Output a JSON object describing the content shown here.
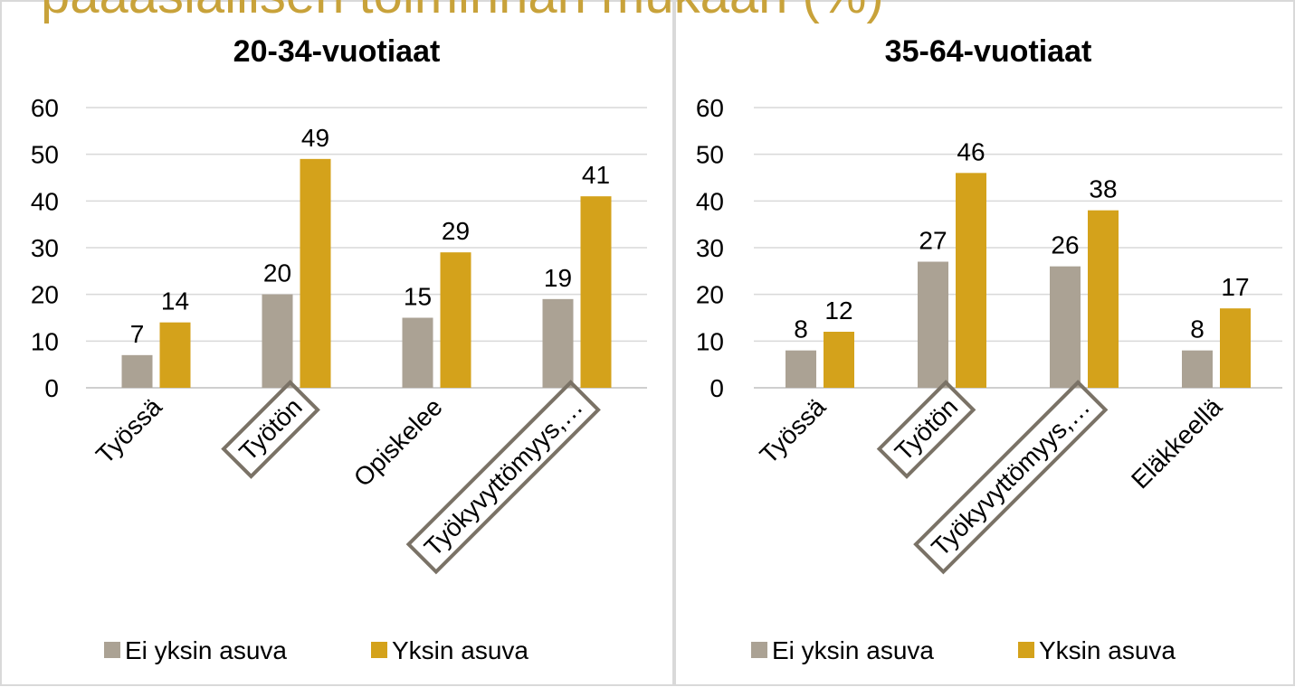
{
  "heading": "pääasiallisen toiminnan mukaan (%)",
  "chart_data": [
    {
      "type": "bar",
      "title": "20-34-vuotiaat",
      "categories": [
        "Työssä",
        "Työtön",
        "Opiskelee",
        "Työkyvyttömyys,…"
      ],
      "series": [
        {
          "name": "Ei yksin asuva",
          "color": "#aba294",
          "values": [
            7,
            20,
            15,
            19
          ]
        },
        {
          "name": "Yksin asuva",
          "color": "#d4a21b",
          "values": [
            14,
            49,
            29,
            41
          ]
        }
      ],
      "ylim": [
        0,
        60
      ],
      "yticks": [
        0,
        10,
        20,
        30,
        40,
        50,
        60
      ],
      "grid": true,
      "legend": "bottom"
    },
    {
      "type": "bar",
      "title": "35-64-vuotiaat",
      "categories": [
        "Työssä",
        "Työtön",
        "Työkyvyttömyys,…",
        "Eläkkeellä"
      ],
      "series": [
        {
          "name": "Ei yksin asuva",
          "color": "#aba294",
          "values": [
            8,
            27,
            26,
            8
          ]
        },
        {
          "name": "Yksin asuva",
          "color": "#d4a21b",
          "values": [
            12,
            46,
            38,
            17
          ]
        }
      ],
      "ylim": [
        0,
        60
      ],
      "yticks": [
        0,
        10,
        20,
        30,
        40,
        50,
        60
      ],
      "grid": true,
      "legend": "bottom"
    }
  ]
}
